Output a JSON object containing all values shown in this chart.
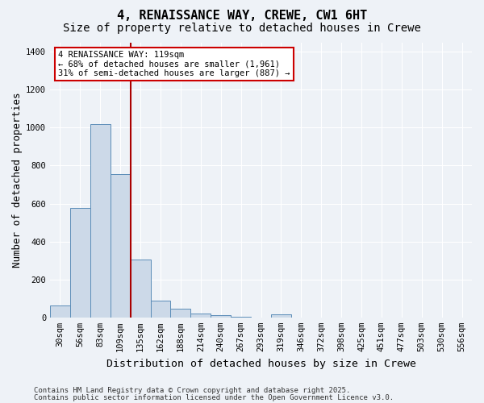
{
  "title_line1": "4, RENAISSANCE WAY, CREWE, CW1 6HT",
  "title_line2": "Size of property relative to detached houses in Crewe",
  "xlabel": "Distribution of detached houses by size in Crewe",
  "ylabel": "Number of detached properties",
  "categories": [
    "30sqm",
    "56sqm",
    "83sqm",
    "109sqm",
    "135sqm",
    "162sqm",
    "188sqm",
    "214sqm",
    "240sqm",
    "267sqm",
    "293sqm",
    "319sqm",
    "346sqm",
    "372sqm",
    "398sqm",
    "425sqm",
    "451sqm",
    "477sqm",
    "503sqm",
    "530sqm",
    "556sqm"
  ],
  "values": [
    65,
    575,
    1020,
    755,
    305,
    90,
    45,
    20,
    10,
    5,
    0,
    15,
    0,
    0,
    0,
    0,
    0,
    0,
    0,
    0,
    0
  ],
  "bar_color": "#ccd9e8",
  "bar_edge_color": "#5b8db8",
  "red_line_x": 3.5,
  "annotation_text": "4 RENAISSANCE WAY: 119sqm\n← 68% of detached houses are smaller (1,961)\n31% of semi-detached houses are larger (887) →",
  "annotation_box_color": "white",
  "annotation_box_edge_color": "#cc0000",
  "red_line_color": "#aa0000",
  "ylim": [
    0,
    1450
  ],
  "yticks": [
    0,
    200,
    400,
    600,
    800,
    1000,
    1200,
    1400
  ],
  "footer_line1": "Contains HM Land Registry data © Crown copyright and database right 2025.",
  "footer_line2": "Contains public sector information licensed under the Open Government Licence v3.0.",
  "background_color": "#eef2f7",
  "grid_color": "#ffffff",
  "title_fontsize": 11,
  "subtitle_fontsize": 10,
  "axis_label_fontsize": 9,
  "tick_fontsize": 7.5,
  "annotation_fontsize": 7.5,
  "footer_fontsize": 6.5
}
